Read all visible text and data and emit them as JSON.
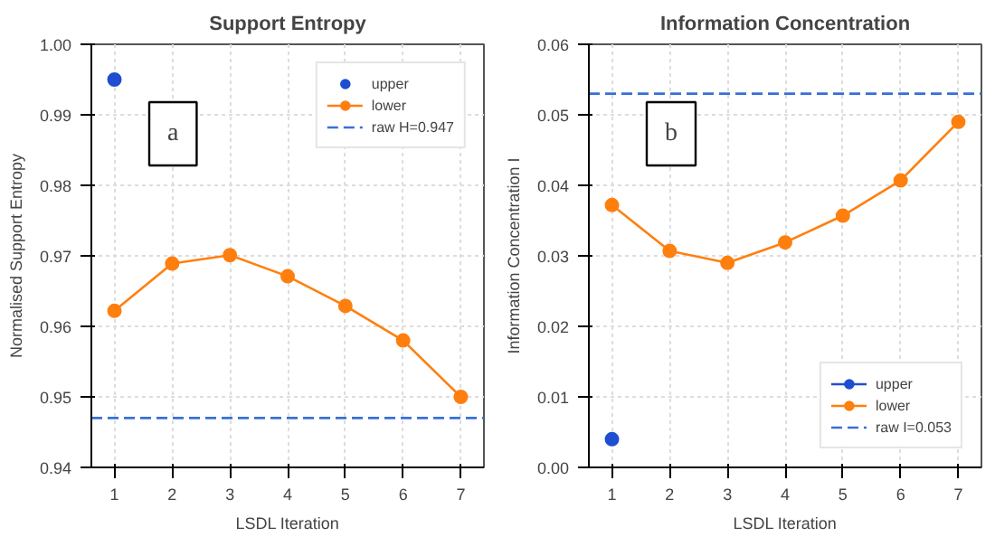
{
  "chart_data": [
    {
      "type": "line",
      "title": "Support Entropy",
      "xlabel": "LSDL Iteration",
      "ylabel": "Normalised Support Entropy",
      "x": [
        1,
        2,
        3,
        4,
        5,
        6,
        7
      ],
      "xlim": [
        0.6,
        7.4
      ],
      "xticks": [
        1,
        2,
        3,
        4,
        5,
        6,
        7
      ],
      "ylim": [
        0.94,
        1.0
      ],
      "yticks": [
        0.94,
        0.95,
        0.96,
        0.97,
        0.98,
        0.99,
        {
          "value": 1.0,
          "label": "1.00"
        }
      ],
      "grid": true,
      "legend": "top right",
      "marker": "circle",
      "series": [
        {
          "name": "upper",
          "type": "scatter",
          "color": "#1f4fd0",
          "x": [
            1
          ],
          "values": [
            0.995
          ]
        },
        {
          "name": "lower",
          "color": "#ff7f0e",
          "values": [
            0.9622,
            0.9689,
            0.9701,
            0.9671,
            0.9629,
            0.958,
            0.95
          ]
        }
      ],
      "ref_lines": [
        {
          "axis": "y",
          "value": 0.947,
          "label": "raw H=0.947",
          "color": "#3a6fd8",
          "line_style": "dashed"
        }
      ],
      "annotations": [
        "a"
      ]
    },
    {
      "type": "line",
      "title": "Information Concentration",
      "xlabel": "LSDL Iteration",
      "ylabel": "Information Concentration I",
      "x": [
        1,
        2,
        3,
        4,
        5,
        6,
        7
      ],
      "xlim": [
        0.6,
        7.4
      ],
      "xticks": [
        1,
        2,
        3,
        4,
        5,
        6,
        7
      ],
      "ylim": [
        0.0,
        0.06
      ],
      "yticks": [
        {
          "value": 0.0,
          "label": "0.00"
        },
        0.01,
        0.02,
        0.03,
        0.04,
        0.05,
        0.06
      ],
      "grid": true,
      "legend": "bottom right",
      "marker": "circle",
      "series": [
        {
          "name": "upper",
          "color": "#1f4fd0",
          "x": [
            1
          ],
          "values": [
            0.004
          ]
        },
        {
          "name": "lower",
          "color": "#ff7f0e",
          "values": [
            0.0372,
            0.0307,
            0.029,
            0.0319,
            0.0357,
            0.0407,
            0.049
          ]
        }
      ],
      "ref_lines": [
        {
          "axis": "y",
          "value": 0.053,
          "label": "raw I=0.053",
          "color": "#3a6fd8",
          "line_style": "dashed"
        }
      ],
      "annotations": [
        "b"
      ]
    }
  ]
}
